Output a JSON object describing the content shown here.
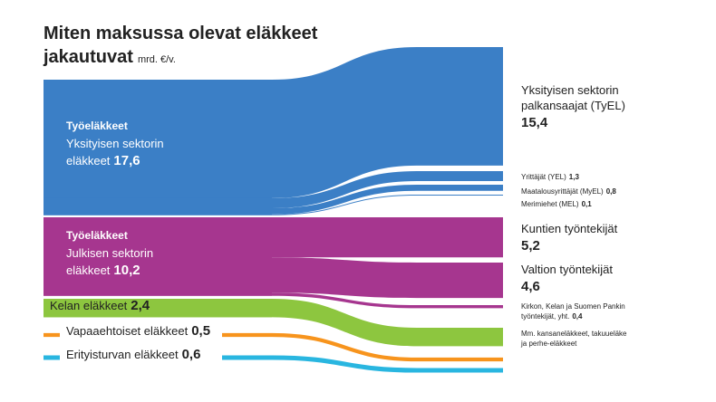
{
  "chart_data": {
    "type": "sankey",
    "title": [
      "Miten maksussa olevat eläkkeet",
      "jakautuvat"
    ],
    "unit": "mrd. €/v.",
    "nodes": [
      {
        "group": "Työeläkkeet",
        "labels": [
          "Yksityisen sektorin",
          "eläkkeet"
        ],
        "value": 17.6,
        "value_label": "17,6",
        "color": "#3b7fc6"
      },
      {
        "group": "Työeläkkeet",
        "labels": [
          "Julkisen sektorin",
          "eläkkeet"
        ],
        "value": 10.2,
        "value_label": "10,2",
        "color": "#a6368f"
      },
      {
        "labels": [
          "Kelan eläkkeet"
        ],
        "value": 2.4,
        "value_label": "2,4",
        "color": "#8dc63f"
      },
      {
        "labels": [
          "Vapaaehtoiset eläkkeet"
        ],
        "value": 0.5,
        "value_label": "0,5",
        "color": "#f7941d"
      },
      {
        "labels": [
          "Erityisturvan eläkkeet"
        ],
        "value": 0.6,
        "value_label": "0,6",
        "color": "#29b6e0"
      }
    ],
    "targets": [
      {
        "labels": [
          "Yksityisen sektorin",
          "palkansaajat (TyEL)"
        ],
        "value": 15.4,
        "value_label": "15,4",
        "source": 0
      },
      {
        "labels": [
          "Yrittäjät (YEL)"
        ],
        "value": 1.3,
        "value_label": "1,3",
        "source": 0
      },
      {
        "labels": [
          "Maatalousyrittäjät (MyEL)"
        ],
        "value": 0.8,
        "value_label": "0,8",
        "source": 0
      },
      {
        "labels": [
          "Merimiehet (MEL)"
        ],
        "value": 0.1,
        "value_label": "0,1",
        "source": 0
      },
      {
        "labels": [
          "Kuntien työntekijät"
        ],
        "value": 5.2,
        "value_label": "5,2",
        "source": 1
      },
      {
        "labels": [
          "Valtion työntekijät"
        ],
        "value": 4.6,
        "value_label": "4,6",
        "source": 1
      },
      {
        "labels": [
          "Kirkon, Kelan ja Suomen Pankin",
          "työntekijät, yht."
        ],
        "value": 0.4,
        "value_label": "0,4",
        "source": 1
      },
      {
        "labels": [
          "Mm. kansaneläkkeet, takuueläke",
          "ja perhe-eläkkeet"
        ],
        "source": 2
      }
    ]
  }
}
